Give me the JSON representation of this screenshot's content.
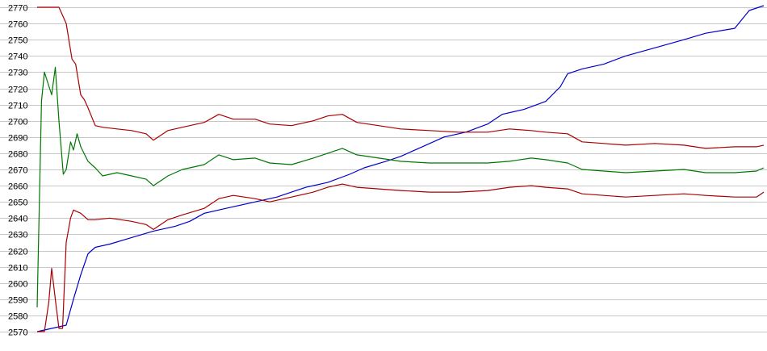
{
  "chart_data": {
    "type": "line",
    "title": "",
    "xlabel": "",
    "ylabel": "",
    "ylim": [
      2570,
      2770
    ],
    "xlim": [
      0,
      100
    ],
    "yticks": [
      "2570",
      "2580",
      "2590",
      "2600",
      "2610",
      "2620",
      "2630",
      "2640",
      "2650",
      "2660",
      "2670",
      "2680",
      "2690",
      "2700",
      "2710",
      "2720",
      "2730",
      "2740",
      "2750",
      "2760",
      "2770"
    ],
    "grid": "horizontal",
    "legend": "none",
    "series": [
      {
        "color": "#0000cc",
        "points": [
          [
            0,
            2570
          ],
          [
            1,
            2571
          ],
          [
            2,
            2572
          ],
          [
            3,
            2573
          ],
          [
            4,
            2574
          ],
          [
            5,
            2590
          ],
          [
            6,
            2605
          ],
          [
            7,
            2618
          ],
          [
            8,
            2622
          ],
          [
            10,
            2624
          ],
          [
            13,
            2628
          ],
          [
            16,
            2632
          ],
          [
            19,
            2635
          ],
          [
            21,
            2638
          ],
          [
            23,
            2643
          ],
          [
            26,
            2646
          ],
          [
            30,
            2650
          ],
          [
            33,
            2653
          ],
          [
            35,
            2656
          ],
          [
            37,
            2659
          ],
          [
            40,
            2662
          ],
          [
            43,
            2667
          ],
          [
            45,
            2671
          ],
          [
            48,
            2675
          ],
          [
            50,
            2678
          ],
          [
            53,
            2684
          ],
          [
            56,
            2690
          ],
          [
            59,
            2693
          ],
          [
            62,
            2698
          ],
          [
            64,
            2704
          ],
          [
            67,
            2707
          ],
          [
            70,
            2712
          ],
          [
            72,
            2721
          ],
          [
            73,
            2729
          ],
          [
            75,
            2732
          ],
          [
            78,
            2735
          ],
          [
            81,
            2740
          ],
          [
            85,
            2745
          ],
          [
            89,
            2750
          ],
          [
            92,
            2754
          ],
          [
            96,
            2757
          ],
          [
            98,
            2768
          ],
          [
            100,
            2771
          ]
        ]
      },
      {
        "color": "#007700",
        "points": [
          [
            0,
            2585
          ],
          [
            0.6,
            2712
          ],
          [
            1,
            2730
          ],
          [
            1.5,
            2723
          ],
          [
            2,
            2716
          ],
          [
            2.5,
            2733
          ],
          [
            3,
            2700
          ],
          [
            3.6,
            2667
          ],
          [
            4,
            2670
          ],
          [
            4.6,
            2687
          ],
          [
            5,
            2682
          ],
          [
            5.5,
            2692
          ],
          [
            6,
            2684
          ],
          [
            7,
            2675
          ],
          [
            8,
            2671
          ],
          [
            9,
            2666
          ],
          [
            11,
            2668
          ],
          [
            13,
            2666
          ],
          [
            15,
            2664
          ],
          [
            16,
            2660
          ],
          [
            18,
            2666
          ],
          [
            20,
            2670
          ],
          [
            23,
            2673
          ],
          [
            25,
            2679
          ],
          [
            27,
            2676
          ],
          [
            30,
            2677
          ],
          [
            32,
            2674
          ],
          [
            35,
            2673
          ],
          [
            38,
            2677
          ],
          [
            40,
            2680
          ],
          [
            42,
            2683
          ],
          [
            44,
            2679
          ],
          [
            47,
            2677
          ],
          [
            50,
            2675
          ],
          [
            54,
            2674
          ],
          [
            58,
            2674
          ],
          [
            62,
            2674
          ],
          [
            65,
            2675
          ],
          [
            68,
            2677
          ],
          [
            70,
            2676
          ],
          [
            73,
            2674
          ],
          [
            75,
            2670
          ],
          [
            78,
            2669
          ],
          [
            81,
            2668
          ],
          [
            85,
            2669
          ],
          [
            89,
            2670
          ],
          [
            92,
            2668
          ],
          [
            96,
            2668
          ],
          [
            99,
            2669
          ],
          [
            100,
            2671
          ]
        ]
      },
      {
        "color": "#aa0000",
        "points": [
          [
            0,
            2770
          ],
          [
            1,
            2770
          ],
          [
            2,
            2770
          ],
          [
            3,
            2770
          ],
          [
            4,
            2760
          ],
          [
            4.8,
            2738
          ],
          [
            5.3,
            2735
          ],
          [
            6,
            2716
          ],
          [
            6.5,
            2713
          ],
          [
            7,
            2708
          ],
          [
            8,
            2697
          ],
          [
            9,
            2696
          ],
          [
            11,
            2695
          ],
          [
            13,
            2694
          ],
          [
            15,
            2692
          ],
          [
            16,
            2688
          ],
          [
            18,
            2694
          ],
          [
            20,
            2696
          ],
          [
            23,
            2699
          ],
          [
            25,
            2704
          ],
          [
            27,
            2701
          ],
          [
            30,
            2701
          ],
          [
            32,
            2698
          ],
          [
            35,
            2697
          ],
          [
            38,
            2700
          ],
          [
            40,
            2703
          ],
          [
            42,
            2704
          ],
          [
            44,
            2699
          ],
          [
            47,
            2697
          ],
          [
            50,
            2695
          ],
          [
            54,
            2694
          ],
          [
            58,
            2693
          ],
          [
            62,
            2693
          ],
          [
            65,
            2695
          ],
          [
            68,
            2694
          ],
          [
            70,
            2693
          ],
          [
            73,
            2692
          ],
          [
            75,
            2687
          ],
          [
            78,
            2686
          ],
          [
            81,
            2685
          ],
          [
            85,
            2686
          ],
          [
            89,
            2685
          ],
          [
            92,
            2683
          ],
          [
            96,
            2684
          ],
          [
            99,
            2684
          ],
          [
            100,
            2685
          ]
        ]
      },
      {
        "color": "#aa0000",
        "points": [
          [
            0,
            2570
          ],
          [
            1,
            2570
          ],
          [
            1.6,
            2588
          ],
          [
            2,
            2609
          ],
          [
            2.5,
            2590
          ],
          [
            3,
            2572
          ],
          [
            3.5,
            2572
          ],
          [
            4,
            2625
          ],
          [
            4.6,
            2640
          ],
          [
            5,
            2645
          ],
          [
            5.5,
            2644
          ],
          [
            6,
            2643
          ],
          [
            7,
            2639
          ],
          [
            8,
            2639
          ],
          [
            10,
            2640
          ],
          [
            13,
            2638
          ],
          [
            15,
            2636
          ],
          [
            16,
            2633
          ],
          [
            18,
            2639
          ],
          [
            20,
            2642
          ],
          [
            23,
            2646
          ],
          [
            25,
            2652
          ],
          [
            27,
            2654
          ],
          [
            30,
            2652
          ],
          [
            32,
            2650
          ],
          [
            35,
            2653
          ],
          [
            38,
            2656
          ],
          [
            40,
            2659
          ],
          [
            42,
            2661
          ],
          [
            44,
            2659
          ],
          [
            47,
            2658
          ],
          [
            50,
            2657
          ],
          [
            54,
            2656
          ],
          [
            58,
            2656
          ],
          [
            62,
            2657
          ],
          [
            65,
            2659
          ],
          [
            68,
            2660
          ],
          [
            70,
            2659
          ],
          [
            73,
            2658
          ],
          [
            75,
            2655
          ],
          [
            78,
            2654
          ],
          [
            81,
            2653
          ],
          [
            85,
            2654
          ],
          [
            89,
            2655
          ],
          [
            92,
            2654
          ],
          [
            96,
            2653
          ],
          [
            99,
            2653
          ],
          [
            100,
            2656
          ]
        ]
      }
    ]
  }
}
